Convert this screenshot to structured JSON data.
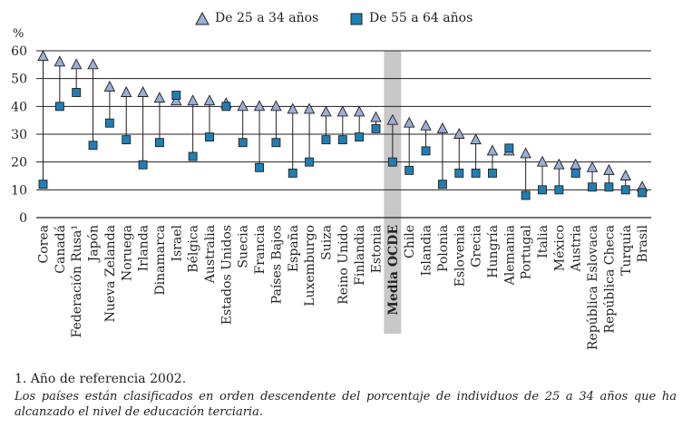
{
  "chart_data": {
    "type": "scatter",
    "ylabel": "%",
    "ylim": [
      0,
      60
    ],
    "yticks": [
      0,
      10,
      20,
      30,
      40,
      50,
      60
    ],
    "highlight_category": "Media OCDE",
    "categories": [
      "Corea",
      "Canadá",
      "Federación Rusa¹",
      "Japón",
      "Nueva Zelanda",
      "Noruega",
      "Irlanda",
      "Dinamarca",
      "Israel",
      "Bélgica",
      "Australia",
      "Estados Unidos",
      "Suecia",
      "Francia",
      "Países Bajos",
      "España",
      "Luxemburgo",
      "Suiza",
      "Reino Unido",
      "Finlandia",
      "Estonia",
      "Media OCDE",
      "Chile",
      "Islandia",
      "Polonia",
      "Eslovenia",
      "Grecia",
      "Hungría",
      "Alemania",
      "Portugal",
      "Italia",
      "México",
      "Austria",
      "República Eslovaca",
      "República Checa",
      "Turquía",
      "Brasil"
    ],
    "series": [
      {
        "name": "De 25 a 34 años",
        "marker": "triangle",
        "color": "#9aaed6",
        "values": [
          58,
          56,
          55,
          55,
          47,
          45,
          45,
          43,
          42,
          42,
          42,
          41,
          40,
          40,
          40,
          39,
          39,
          38,
          38,
          38,
          36,
          35,
          34,
          33,
          32,
          30,
          28,
          24,
          24,
          23,
          20,
          19,
          19,
          18,
          17,
          15,
          11
        ]
      },
      {
        "name": "De 55 a 64 años",
        "marker": "square",
        "color": "#1f7fb4",
        "values": [
          12,
          40,
          45,
          26,
          34,
          28,
          19,
          27,
          44,
          22,
          29,
          40,
          27,
          18,
          27,
          16,
          20,
          28,
          28,
          29,
          32,
          20,
          17,
          24,
          12,
          16,
          16,
          16,
          25,
          8,
          10,
          10,
          16,
          11,
          11,
          10,
          9
        ]
      }
    ]
  },
  "legend": {
    "item1": "De 25 a 34 años",
    "item2": "De 55 a 64 años"
  },
  "notes": {
    "note1": "1. Año de referencia 2002.",
    "note2": "Los países están clasificados en orden descendente del porcentaje de individuos de 25 a 34 años que ha alcanzado el nivel de educación terciaria."
  }
}
